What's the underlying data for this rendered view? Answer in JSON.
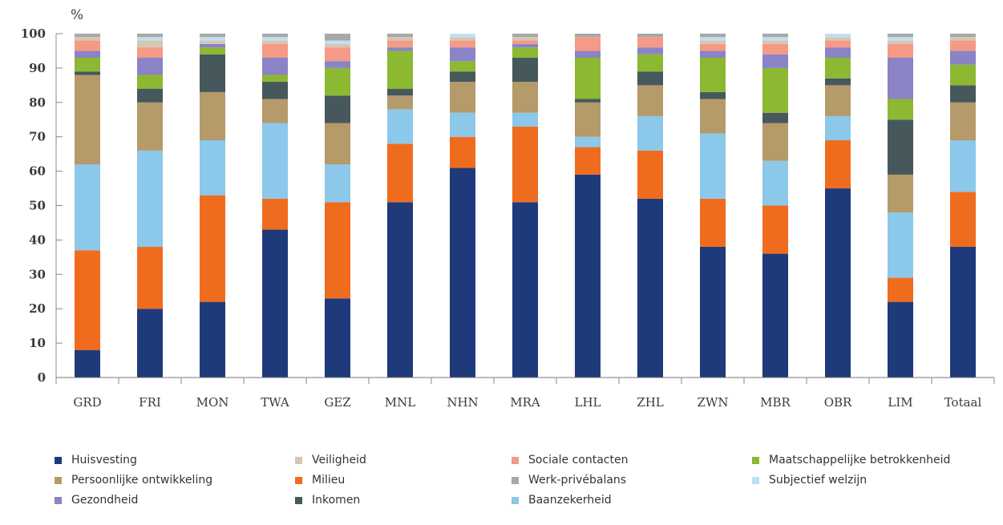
{
  "chart_data": {
    "type": "bar",
    "stacked": true,
    "unit_label": "%",
    "title": "",
    "xlabel": "",
    "ylabel": "",
    "ylim": [
      0,
      100
    ],
    "yticks": [
      "0",
      "10",
      "20",
      "30",
      "40",
      "50",
      "60",
      "70",
      "80",
      "90",
      "100"
    ],
    "legend_position": "bottom",
    "grid": false,
    "categories": [
      "GRD",
      "FRI",
      "MON",
      "TWA",
      "GEZ",
      "MNL",
      "NHN",
      "MRA",
      "LHL",
      "ZHL",
      "ZWN",
      "MBR",
      "OBR",
      "LIM",
      "Totaal"
    ],
    "series": [
      {
        "name": "Huisvesting",
        "color": "#1f3a7a",
        "values": [
          8,
          20,
          22,
          43,
          23,
          51,
          61,
          51,
          59,
          52,
          38,
          36,
          55,
          22,
          38
        ]
      },
      {
        "name": "Milieu",
        "color": "#ef6c1f",
        "values": [
          29,
          18,
          31,
          9,
          28,
          17,
          9,
          22,
          8,
          14,
          14,
          14,
          14,
          7,
          16
        ]
      },
      {
        "name": "Baanzekerheid",
        "color": "#8cc8ea",
        "values": [
          25,
          28,
          16,
          22,
          11,
          10,
          7,
          4,
          3,
          10,
          19,
          13,
          7,
          19,
          15
        ]
      },
      {
        "name": "Persoonlijke ontwikkeling",
        "color": "#b59a6a",
        "values": [
          26,
          14,
          14,
          7,
          12,
          4,
          9,
          9,
          10,
          9,
          10,
          11,
          9,
          11,
          11
        ]
      },
      {
        "name": "Inkomen",
        "color": "#46585c",
        "values": [
          1,
          4,
          11,
          5,
          8,
          2,
          3,
          7,
          1,
          4,
          2,
          3,
          2,
          16,
          5
        ]
      },
      {
        "name": "Maatschappelijke betrokkenheid",
        "color": "#8cb832",
        "values": [
          4,
          4,
          2,
          2,
          8,
          11,
          3,
          3,
          12,
          5,
          10,
          13,
          6,
          6,
          6
        ]
      },
      {
        "name": "Gezondheid",
        "color": "#8a83c6",
        "values": [
          2,
          5,
          1,
          5,
          2,
          1,
          4,
          1,
          2,
          2,
          2,
          4,
          3,
          12,
          4
        ]
      },
      {
        "name": "Sociale contacten",
        "color": "#f59a86",
        "values": [
          3,
          3,
          0,
          4,
          4,
          2,
          2,
          1,
          4,
          3,
          2,
          3,
          2,
          4,
          3
        ]
      },
      {
        "name": "Veiligheid",
        "color": "#d6c6b2",
        "values": [
          1,
          2,
          1,
          1,
          1,
          1,
          1,
          1,
          0,
          0,
          1,
          1,
          1,
          1,
          1
        ]
      },
      {
        "name": "Subjectief welzijn",
        "color": "#bfe0f2",
        "values": [
          0,
          1,
          1,
          1,
          1,
          0,
          1,
          0,
          0,
          0,
          1,
          1,
          1,
          1,
          0
        ]
      },
      {
        "name": "Werk-privébalans",
        "color": "#a8a8a8",
        "values": [
          1,
          1,
          1,
          1,
          2,
          1,
          0,
          1,
          1,
          1,
          1,
          1,
          0,
          1,
          1
        ]
      }
    ],
    "legend_order": [
      "Huisvesting",
      "Veiligheid",
      "Sociale contacten",
      "Maatschappelijke betrokkenheid",
      "Persoonlijke ontwikkeling",
      "Milieu",
      "Werk-privébalans",
      "Subjectief welzijn",
      "Gezondheid",
      "Inkomen",
      "Baanzekerheid"
    ]
  }
}
